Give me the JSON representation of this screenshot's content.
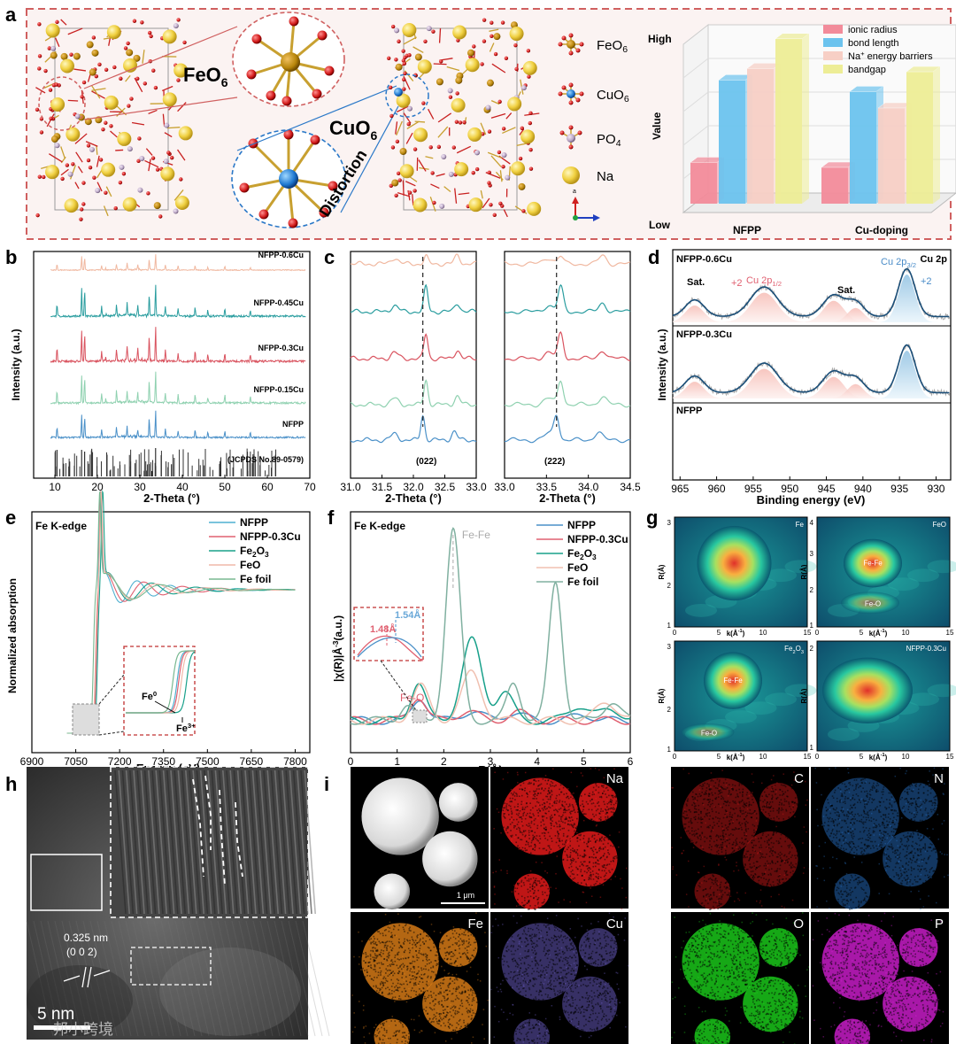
{
  "panel_labels": {
    "a": "a",
    "b": "b",
    "c": "c",
    "d": "d",
    "e": "e",
    "f": "f",
    "g": "g",
    "h": "h",
    "i": "i"
  },
  "panel_a": {
    "feo6_label": "FeO",
    "feo6_sub": "6",
    "cuo6_label": "CuO",
    "cuo6_sub": "6",
    "distortion": "Distortion",
    "axis_a": "a",
    "legend": [
      {
        "label": "FeO",
        "sub": "6",
        "color": "#b8860b"
      },
      {
        "label": "CuO",
        "sub": "6",
        "color": "#1e88e5"
      },
      {
        "label": "PO",
        "sub": "4",
        "color": "#b0a0b8"
      },
      {
        "label": "Na",
        "sub": "",
        "color": "#f0d048"
      }
    ]
  },
  "chart_data": [
    {
      "id": "a-bar3d",
      "type": "bar",
      "ylabel": "Value",
      "y_high": "High",
      "y_low": "Low",
      "categories": [
        "NFPP",
        "Cu-doping"
      ],
      "series": [
        {
          "name": "ionic radius",
          "color": "#f28b9a",
          "values": [
            0.25,
            0.22
          ]
        },
        {
          "name": "bond length",
          "color": "#6cc3ee",
          "values": [
            0.75,
            0.68
          ]
        },
        {
          "name": "Na",
          "name_sup": "+",
          "name_rest": " energy barriers",
          "color": "#f7cfc5",
          "values": [
            0.82,
            0.58
          ]
        },
        {
          "name": "bandgap",
          "color": "#eded96",
          "values": [
            1.0,
            0.8
          ]
        }
      ]
    },
    {
      "id": "b-xrd",
      "type": "line",
      "xlabel": "2-Theta (°)",
      "ylabel": "Intensity (a.u.)",
      "xlim": [
        5,
        70
      ],
      "xticks": [
        10,
        20,
        30,
        40,
        50,
        60,
        70
      ],
      "series": [
        {
          "name": "NFPP-0.6Cu",
          "color": "#f0b8a0"
        },
        {
          "name": "NFPP-0.45Cu",
          "color": "#2a9d9f"
        },
        {
          "name": "NFPP-0.3Cu",
          "color": "#d9535f"
        },
        {
          "name": "NFPP-0.15Cu",
          "color": "#8fd1b0"
        },
        {
          "name": "NFPP",
          "color": "#4a90c8"
        }
      ],
      "reference": "(JCPDS No.89-0579)"
    },
    {
      "id": "c-zoom",
      "type": "line",
      "xlabel": "2-Theta (°)",
      "left": {
        "xlim": [
          31.0,
          33.0
        ],
        "xticks": [
          31.0,
          31.5,
          32.0,
          32.5,
          33.0
        ],
        "peak": 32.15,
        "hkl": "(022)"
      },
      "right": {
        "xlim": [
          33.0,
          34.5
        ],
        "xticks": [
          33.0,
          33.5,
          34.0,
          34.5
        ],
        "peak": 33.62,
        "hkl": "(222)"
      }
    },
    {
      "id": "d-xps",
      "type": "line",
      "xlabel": "Binding energy (eV)",
      "ylabel": "Intensity (a.u.)",
      "xlim": [
        966,
        928
      ],
      "xticks": [
        965,
        960,
        955,
        950,
        945,
        940,
        935,
        930
      ],
      "rows": [
        "NFPP-0.6Cu",
        "NFPP-0.3Cu",
        "NFPP"
      ],
      "title": "Cu 2p",
      "annotations": {
        "sat1": "Sat.",
        "sat2": "Sat.",
        "plus2a": "+2",
        "cu12": "Cu 2p",
        "cu12sub": "1/2",
        "cu32": "Cu 2p",
        "cu32sub": "3/2",
        "plus2b": "+2"
      }
    },
    {
      "id": "e-xanes",
      "type": "line",
      "xlabel": "Energy (eV)",
      "ylabel": "Normalized absorption",
      "title": "Fe K-edge",
      "xlim": [
        6900,
        7850
      ],
      "xticks": [
        6900,
        7050,
        7200,
        7350,
        7500,
        7650,
        7800
      ],
      "series": [
        {
          "name": "NFPP",
          "color": "#4fb0d0"
        },
        {
          "name": "NFPP-0.3Cu",
          "color": "#e06070"
        },
        {
          "name": "Fe",
          "sub": "2",
          "mid": "O",
          "sub2": "3",
          "color": "#18a08a"
        },
        {
          "name": "FeO",
          "color": "#f0b8a8"
        },
        {
          "name": "Fe foil",
          "color": "#78b890"
        }
      ],
      "inset": {
        "fe0": "Fe",
        "fe0_sup": "0",
        "fe3": "Fe",
        "fe3_sup": "3+"
      }
    },
    {
      "id": "f-exafs",
      "type": "line",
      "xlabel": "R(Å)",
      "ylabel": "|χ(R)|Å",
      "ylabel_sup": "-3",
      "ylabel_tail": "(a.u.)",
      "title": "Fe K-edge",
      "xlim": [
        0,
        6
      ],
      "xticks": [
        0,
        1,
        2,
        3,
        4,
        5,
        6
      ],
      "series": [
        {
          "name": "NFPP",
          "color": "#4a90c8"
        },
        {
          "name": "NFPP-0.3Cu",
          "color": "#e06070"
        },
        {
          "name": "Fe",
          "sub": "2",
          "mid": "O",
          "sub2": "3",
          "color": "#18a08a"
        },
        {
          "name": "FeO",
          "color": "#f0c0b0"
        },
        {
          "name": "Fe foil",
          "color": "#80b0a0"
        }
      ],
      "annotations": {
        "fefe": "Fe-Fe",
        "feo": "Fe-O",
        "r1": "1.48Å",
        "r2": "1.54Å"
      }
    },
    {
      "id": "g-wavelet",
      "type": "heatmap",
      "xlabel": "k(Å",
      "xlabel_sup": "-1",
      "xlabel_tail": ")",
      "ylabel": "R(Å)",
      "maps": [
        {
          "title": "Fe",
          "yticks": [
            1,
            2,
            3
          ],
          "xticks": [
            0,
            5,
            10,
            15
          ],
          "labels": []
        },
        {
          "title": "FeO",
          "yticks": [
            1,
            2,
            3,
            4
          ],
          "xticks": [
            0,
            5,
            10,
            15
          ],
          "labels": [
            "Fe-Fe",
            "Fe-O"
          ]
        },
        {
          "title": "Fe",
          "title_sub": "2",
          "title_mid": "O",
          "title_sub2": "3",
          "yticks": [
            1,
            2,
            3
          ],
          "xticks": [
            0,
            5,
            10,
            15
          ],
          "labels": [
            "Fe-Fe",
            "Fe-O"
          ]
        },
        {
          "title": "NFPP-0.3Cu",
          "yticks": [
            1,
            2
          ],
          "xticks": [
            0,
            5,
            10,
            15
          ],
          "labels": []
        }
      ]
    }
  ],
  "panel_h": {
    "spacing": "0.325 nm",
    "plane": "(0 0 2)",
    "scale": "5 nm",
    "watermark": "邦小跨境"
  },
  "panel_i": {
    "scale": "1 μm",
    "maps": [
      "Na",
      "Fe",
      "Cu",
      "C",
      "N",
      "O",
      "P"
    ]
  }
}
